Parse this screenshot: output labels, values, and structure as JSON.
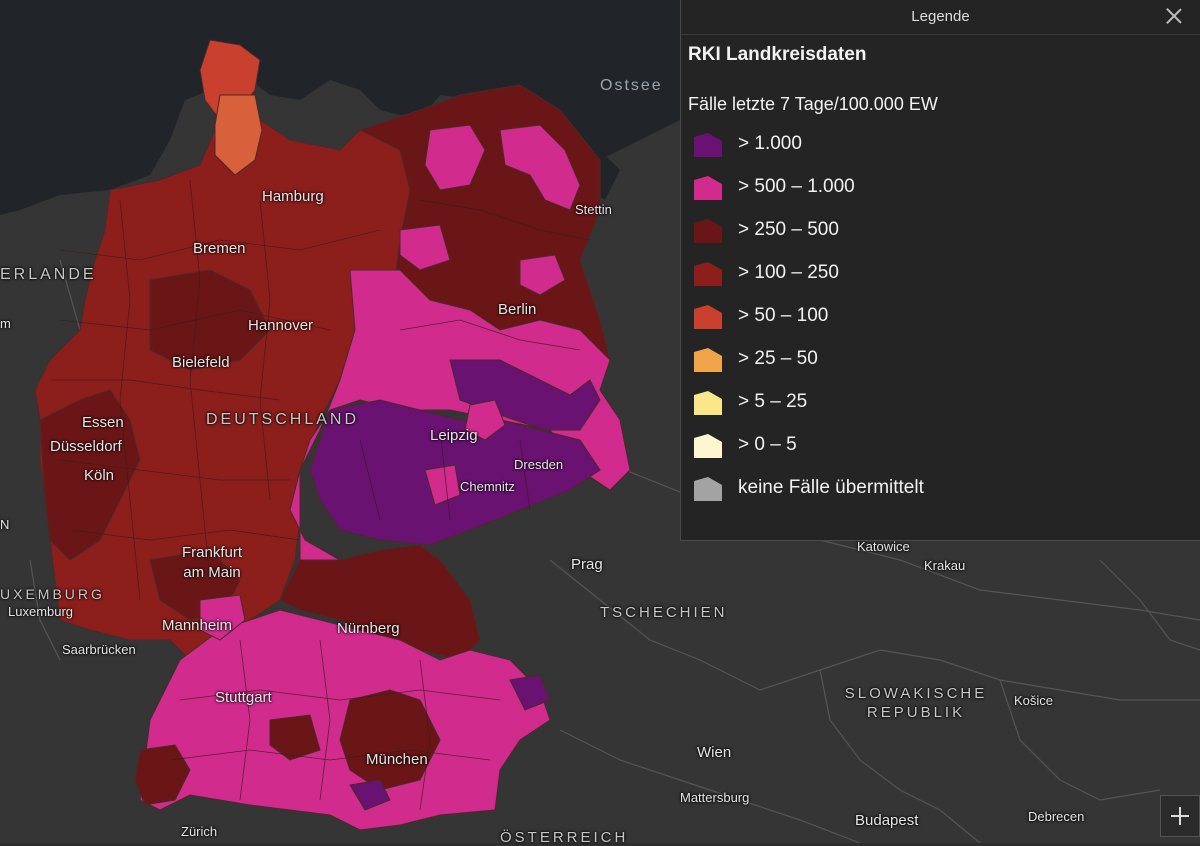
{
  "legend": {
    "panel_title": "Legende",
    "layer_title": "RKI Landkreisdaten",
    "field_title": "Fälle letzte 7 Tage/100.000 EW",
    "classes": [
      {
        "label": "> 1.000",
        "color": "#6a1272"
      },
      {
        "label": "> 500 – 1.000",
        "color": "#d22b8e"
      },
      {
        "label": "> 250 – 500",
        "color": "#6b1616"
      },
      {
        "label": "> 100 – 250",
        "color": "#8c1f1c"
      },
      {
        "label": "> 50 – 100",
        "color": "#c9402f"
      },
      {
        "label": "> 25 – 50",
        "color": "#f0a54b"
      },
      {
        "label": "> 5 – 25",
        "color": "#fbe789"
      },
      {
        "label": "> 0 – 5",
        "color": "#fdf6cf"
      },
      {
        "label": "keine Fälle übermittelt",
        "color": "#a3a3a3"
      }
    ]
  },
  "map_labels": {
    "ostsee": "Ostsee",
    "hamburg": "Hamburg",
    "stettin": "Stettin",
    "bremen": "Bremen",
    "niederlande": "ERLANDE",
    "berlin": "Berlin",
    "hannover": "Hannover",
    "bielefeld": "Bielefeld",
    "deutschland": "DEUTSCHLAND",
    "essen": "Essen",
    "duesseldorf": "Düsseldorf",
    "leipzig": "Leipzig",
    "dresden": "Dresden",
    "koeln": "Köln",
    "chemnitz": "Chemnitz",
    "katowice": "Katowice",
    "frankfurt": "Frankfurt\nam Main",
    "krakau": "Krakau",
    "prag": "Prag",
    "luxemburg_country": "UXEMBURG",
    "luxemburg": "Luxemburg",
    "tschechien": "TSCHECHIEN",
    "mannheim": "Mannheim",
    "nuernberg": "Nürnberg",
    "saarbruecken": "Saarbrücken",
    "slowakei": "SLOWAKISCHE\nREPUBLIK",
    "kosice": "Košice",
    "stuttgart": "Stuttgart",
    "wien": "Wien",
    "muenchen": "München",
    "mattersburg": "Mattersburg",
    "budapest": "Budapest",
    "debrecen": "Debrecen",
    "zuerich": "Zürich",
    "oesterreich": "ÖSTERREICH",
    "edge_m": "m",
    "edge_n": "N"
  },
  "colors": {
    "sea": "#212428",
    "land": "#353535",
    "border": "#525252"
  }
}
